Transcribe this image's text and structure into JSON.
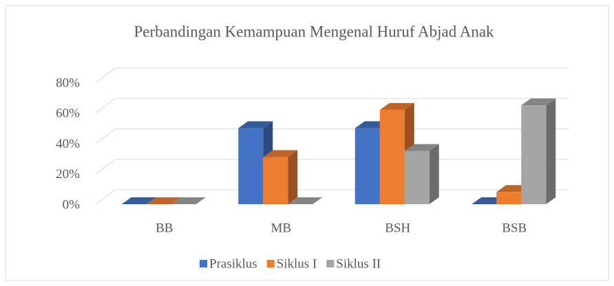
{
  "chart_data": {
    "type": "bar3d",
    "title": "Perbandingan Kemampuan Mengenal Huruf Abjad Anak",
    "categories": [
      "BB",
      "MB",
      "BSH",
      "BSB"
    ],
    "series": [
      {
        "name": "Prasiklus",
        "color": "#4472c4",
        "values": [
          0,
          50,
          50,
          0
        ]
      },
      {
        "name": "Siklus I",
        "color": "#ed7d31",
        "values": [
          0,
          31,
          62,
          8
        ]
      },
      {
        "name": "Siklus II",
        "color": "#a5a5a5",
        "values": [
          0,
          0,
          35,
          65
        ]
      }
    ],
    "ylim": [
      0,
      80
    ],
    "yticks": [
      {
        "value": 0,
        "label": "0%"
      },
      {
        "value": 20,
        "label": "20%"
      },
      {
        "value": 40,
        "label": "40%"
      },
      {
        "value": 60,
        "label": "60%"
      },
      {
        "value": 80,
        "label": "80%"
      }
    ],
    "grid": true,
    "legend": "bottom"
  }
}
